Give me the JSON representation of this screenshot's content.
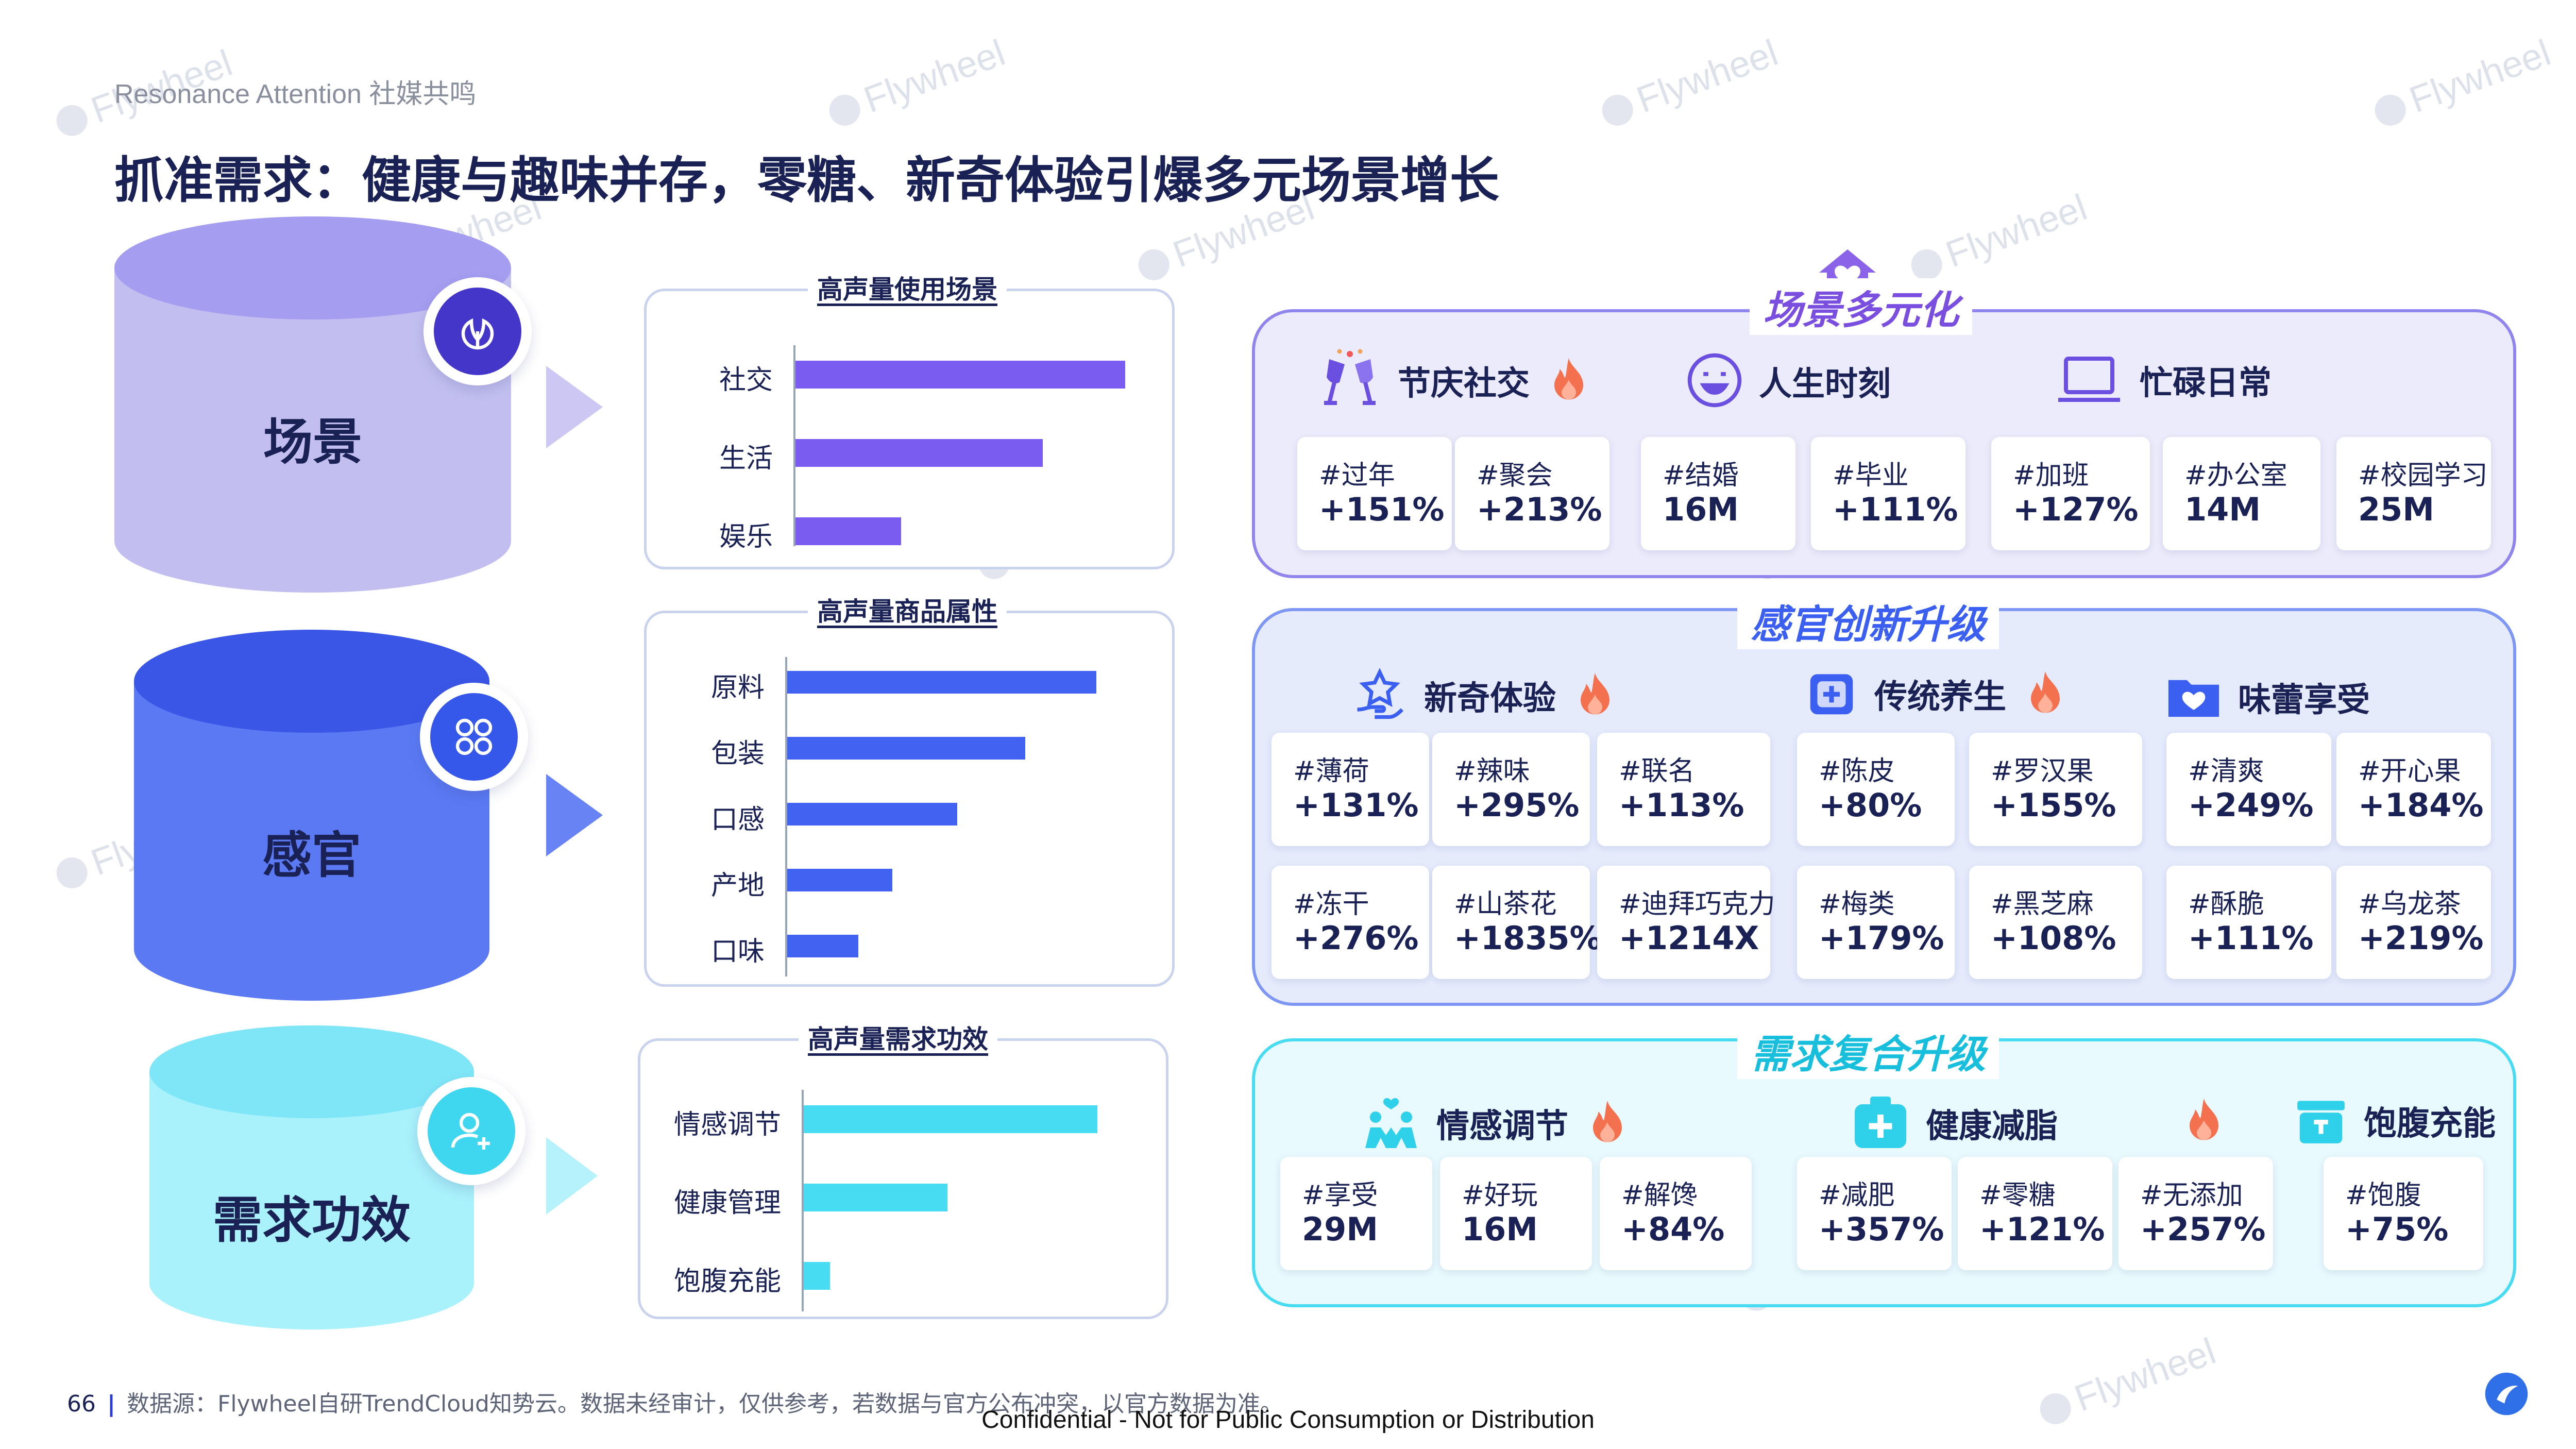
{
  "header": {
    "kicker": "Resonance Attention 社媒共鸣",
    "title": "抓准需求：健康与趣味并存，零糖、新奇体验引爆多元场景增长"
  },
  "watermark": "Flywheel",
  "colors": {
    "scene": "#7b5cf0",
    "sense": "#4263f2",
    "demand": "#48dcf2",
    "title": "#1a2155"
  },
  "pillars": [
    {
      "label": "场景",
      "icon": "leaf-icon"
    },
    {
      "label": "感官",
      "icon": "flower-icon"
    },
    {
      "label": "需求功效",
      "icon": "user-add-icon"
    }
  ],
  "charts": [
    {
      "title": "高声量使用场景",
      "chart_data": {
        "type": "bar",
        "orientation": "horizontal",
        "categories": [
          "社交",
          "生活",
          "娱乐"
        ],
        "values": [
          100,
          75,
          32
        ],
        "xlim": [
          0,
          100
        ]
      }
    },
    {
      "title": "高声量商品属性",
      "chart_data": {
        "type": "bar",
        "orientation": "horizontal",
        "categories": [
          "原料",
          "包装",
          "口感",
          "产地",
          "口味"
        ],
        "values": [
          100,
          77,
          55,
          34,
          23
        ],
        "xlim": [
          0,
          100
        ]
      }
    },
    {
      "title": "高声量需求功效",
      "chart_data": {
        "type": "bar",
        "orientation": "horizontal",
        "categories": [
          "情感调节",
          "健康管理",
          "饱腹充能"
        ],
        "values": [
          100,
          49,
          9
        ],
        "xlim": [
          0,
          100
        ]
      }
    }
  ],
  "sections": [
    {
      "title": "场景多元化",
      "groups": [
        {
          "name": "节庆社交",
          "icon": "cheers-icon",
          "hot": true,
          "cards": [
            {
              "tag": "#过年",
              "value": "+151%"
            },
            {
              "tag": "#聚会",
              "value": "+213%"
            }
          ]
        },
        {
          "name": "人生时刻",
          "icon": "smile-icon",
          "hot": false,
          "cards": [
            {
              "tag": "#结婚",
              "value": "16M"
            },
            {
              "tag": "#毕业",
              "value": "+111%"
            }
          ]
        },
        {
          "name": "忙碌日常",
          "icon": "laptop-icon",
          "hot": false,
          "cards": [
            {
              "tag": "#加班",
              "value": "+127%"
            },
            {
              "tag": "#办公室",
              "value": "14M"
            },
            {
              "tag": "#校园学习",
              "value": "25M"
            }
          ]
        }
      ]
    },
    {
      "title": "感官创新升级",
      "groups": [
        {
          "name": "新奇体验",
          "icon": "star-hand-icon",
          "hot": true,
          "cards": [
            {
              "tag": "#薄荷",
              "value": "+131%"
            },
            {
              "tag": "#辣味",
              "value": "+295%"
            },
            {
              "tag": "#联名",
              "value": "+113%"
            },
            {
              "tag": "#冻干",
              "value": "+276%"
            },
            {
              "tag": "#山茶花",
              "value": "+1835%"
            },
            {
              "tag": "#迪拜巧克力",
              "value": "+1214X"
            }
          ]
        },
        {
          "name": "传统养生",
          "icon": "medical-box-icon",
          "hot": true,
          "cards": [
            {
              "tag": "#陈皮",
              "value": "+80%"
            },
            {
              "tag": "#罗汉果",
              "value": "+155%"
            },
            {
              "tag": "#梅类",
              "value": "+179%"
            },
            {
              "tag": "#黑芝麻",
              "value": "+108%"
            }
          ]
        },
        {
          "name": "味蕾享受",
          "icon": "heart-folder-icon",
          "hot": false,
          "cards": [
            {
              "tag": "#清爽",
              "value": "+249%"
            },
            {
              "tag": "#开心果",
              "value": "+184%"
            },
            {
              "tag": "#酥脆",
              "value": "+111%"
            },
            {
              "tag": "#乌龙茶",
              "value": "+219%"
            }
          ]
        }
      ]
    },
    {
      "title": "需求复合升级",
      "groups": [
        {
          "name": "情感调节",
          "icon": "people-heart-icon",
          "hot": true,
          "cards": [
            {
              "tag": "#享受",
              "value": "29M"
            },
            {
              "tag": "#好玩",
              "value": "16M"
            },
            {
              "tag": "#解馋",
              "value": "+84%"
            }
          ]
        },
        {
          "name": "健康减脂",
          "icon": "first-aid-icon",
          "hot": true,
          "cards": [
            {
              "tag": "#减肥",
              "value": "+357%"
            },
            {
              "tag": "#零糖",
              "value": "+121%"
            },
            {
              "tag": "#无添加",
              "value": "+257%"
            }
          ]
        },
        {
          "name": "饱腹充能",
          "icon": "lunchbox-icon",
          "hot": false,
          "cards": [
            {
              "tag": "#饱腹",
              "value": "+75%"
            }
          ]
        }
      ]
    }
  ],
  "footer": {
    "page": "66",
    "source": "数据源：Flywheel自研TrendCloud知势云。数据未经审计，仅供参考，若数据与官方公布冲突，以官方数据为准。",
    "confidential": "Confidential - Not for Public Consumption or Distribution"
  }
}
